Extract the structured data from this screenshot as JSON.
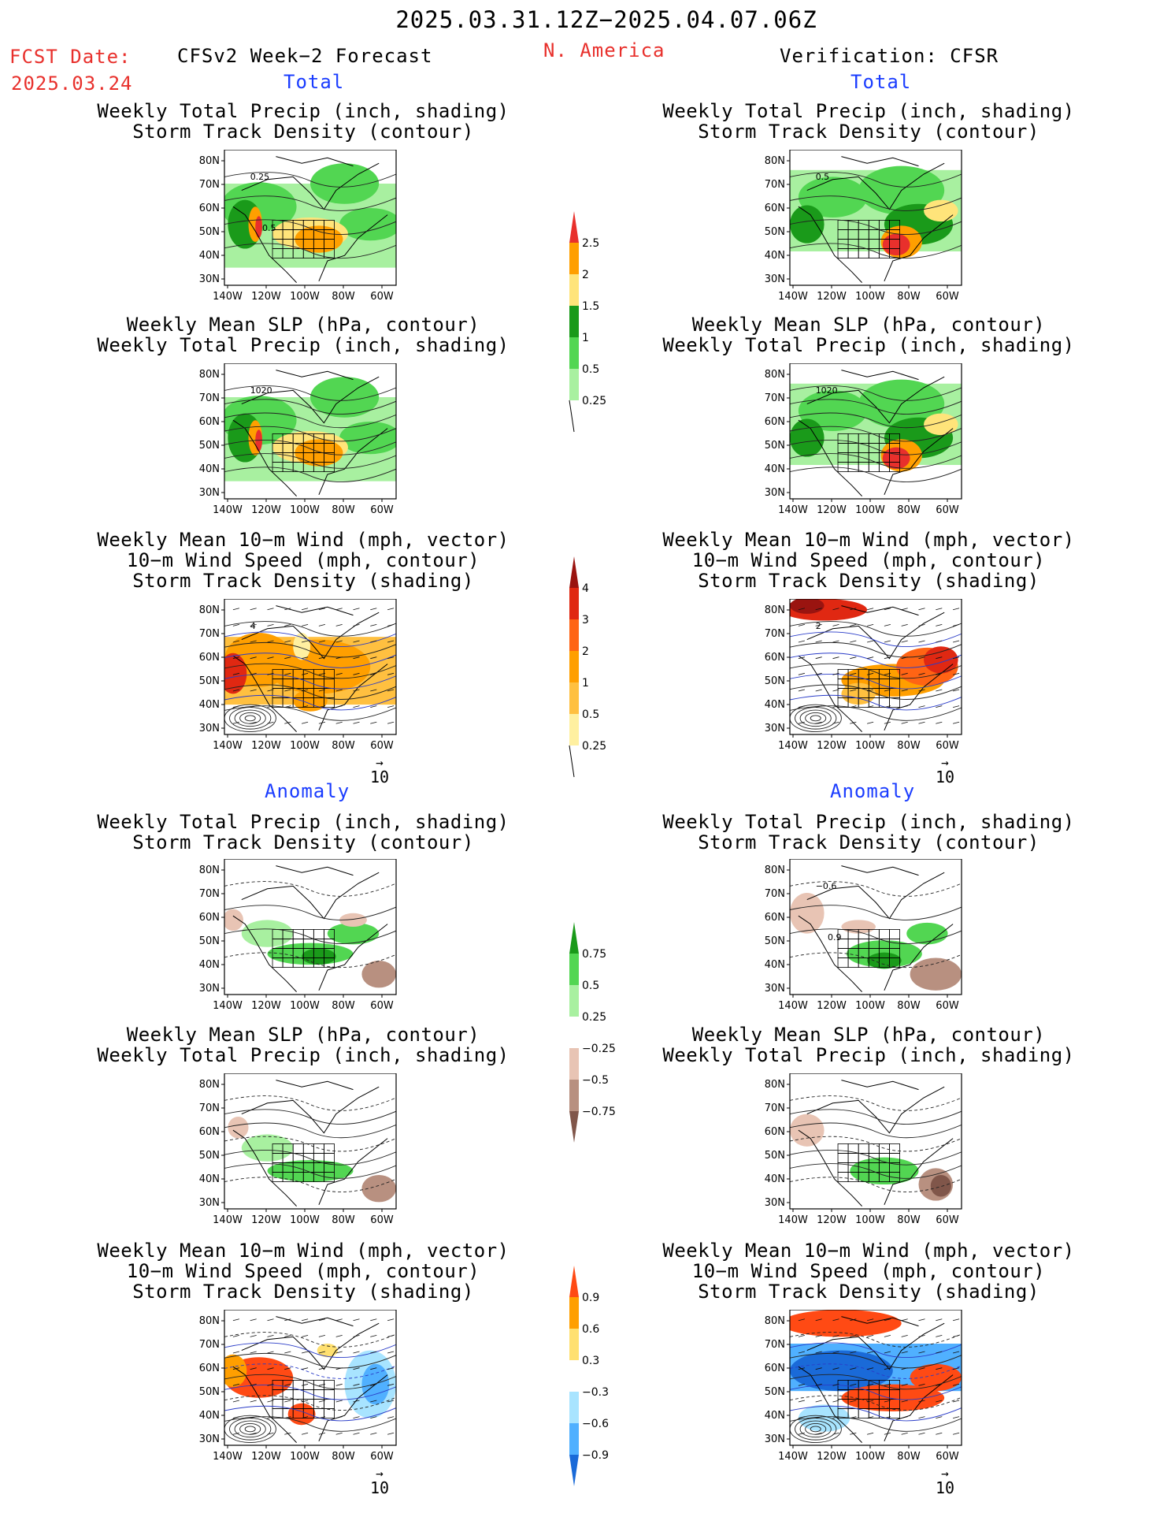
{
  "header": {
    "period": "2025.03.31.12Z−2025.04.07.06Z",
    "fcst_label": "FCST Date:",
    "fcst_date": "2025.03.24",
    "model": "CFSv2 Week−2 Forecast",
    "region": "N. America",
    "verification": "Verification: CFSR",
    "section_total": "Total",
    "section_anomaly": "Anomaly"
  },
  "panel_titles": {
    "precip_storm": [
      "Weekly Total Precip (inch, shading)",
      "Storm Track Density (contour)"
    ],
    "slp_precip": [
      "Weekly Mean SLP (hPa, contour)",
      "Weekly Total Precip (inch, shading)"
    ],
    "wind_storm": [
      "Weekly Mean 10−m Wind (mph, vector)",
      "10−m Wind Speed (mph, contour)",
      "Storm Track Density (shading)"
    ]
  },
  "axes": {
    "lat_labels": [
      "80N",
      "70N",
      "60N",
      "50N",
      "40N",
      "30N"
    ],
    "lon_labels": [
      "140W",
      "120W",
      "100W",
      "80W",
      "60W"
    ]
  },
  "vector_ref": "10",
  "contour_labels": {
    "fc_total_precip": [
      "0.25",
      "0.5"
    ],
    "fc_total_slp": [
      "1020"
    ],
    "fc_total_wind": [
      "4"
    ],
    "ob_total_precip": [
      "0.5"
    ],
    "ob_total_slp": [
      "1020"
    ],
    "ob_total_wind": [
      "2"
    ],
    "ob_anom_precip": [
      "−0.6",
      "0.9"
    ]
  },
  "colorbars": {
    "precip_total": {
      "labels": [
        "2.5",
        "2",
        "1.5",
        "1",
        "0.5",
        "0.25"
      ],
      "colors": [
        "#e8302c",
        "#ff9f00",
        "#ffe47a",
        "#1a9a1a",
        "#52d652",
        "#a8f0a0"
      ]
    },
    "storm_total": {
      "labels": [
        "4",
        "3",
        "2",
        "1",
        "0.5",
        "0.25"
      ],
      "colors": [
        "#9a1410",
        "#e02812",
        "#ff6414",
        "#ff9f00",
        "#ffc040",
        "#fff0a0"
      ]
    },
    "precip_anom": {
      "labels": [
        "0.75",
        "0.5",
        "0.25",
        "−0.25",
        "−0.5",
        "−0.75"
      ],
      "colors": [
        "#1a9a1a",
        "#52d652",
        "#a8f0a0",
        "#ffffff",
        "#e8c4b4",
        "#b89080",
        "#80564a"
      ]
    },
    "storm_anom": {
      "labels": [
        "0.9",
        "0.6",
        "0.3",
        "−0.3",
        "−0.6",
        "−0.9"
      ],
      "colors": [
        "#ff4a14",
        "#ff9f00",
        "#ffe070",
        "#ffffff",
        "#a8e4ff",
        "#50b0ff",
        "#1a6ad8"
      ]
    }
  }
}
